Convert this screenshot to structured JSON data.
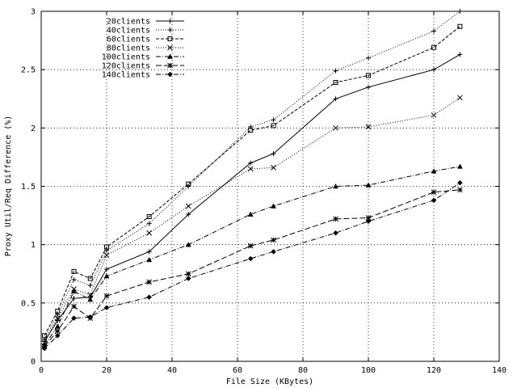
{
  "chart_data": {
    "type": "line",
    "title": "",
    "xlabel": "File Size (KBytes)",
    "ylabel": "Proxy Util/Req Difference (%)",
    "xlim": [
      0,
      140
    ],
    "ylim": [
      0,
      3
    ],
    "xticks": [
      0,
      20,
      40,
      60,
      80,
      100,
      120,
      140
    ],
    "yticks": [
      0,
      0.5,
      1,
      1.5,
      2,
      2.5,
      3
    ],
    "xtick_labels": [
      "0",
      "20",
      "40",
      "60",
      "80",
      "100",
      "120",
      "140"
    ],
    "ytick_labels": [
      "0",
      "0.5",
      "1",
      "1.5",
      "2",
      "2.5",
      "3"
    ],
    "grid": true,
    "legend_position": "top-left",
    "x": [
      1,
      5,
      10,
      15,
      20,
      33,
      45,
      64,
      71,
      90,
      100,
      120,
      128
    ],
    "series": [
      {
        "name": "20clients",
        "marker": "plus",
        "dash": "solid",
        "values": [
          0.17,
          0.35,
          0.54,
          0.55,
          0.79,
          0.94,
          1.26,
          1.7,
          1.78,
          2.25,
          2.35,
          2.5,
          2.63
        ]
      },
      {
        "name": "40clients",
        "marker": "plus",
        "dash": "dotted",
        "values": [
          0.19,
          0.4,
          0.7,
          0.65,
          0.95,
          1.18,
          1.5,
          2.01,
          2.07,
          2.49,
          2.6,
          2.83,
          3.0
        ]
      },
      {
        "name": "60clients",
        "marker": "square",
        "dash": "dashed",
        "values": [
          0.22,
          0.43,
          0.77,
          0.71,
          0.98,
          1.24,
          1.52,
          1.98,
          2.02,
          2.39,
          2.45,
          2.69,
          2.87
        ]
      },
      {
        "name": "80clients",
        "marker": "cross",
        "dash": "dotted",
        "values": [
          0.16,
          0.37,
          0.62,
          0.57,
          0.91,
          1.1,
          1.33,
          1.65,
          1.66,
          2.0,
          2.01,
          2.11,
          2.26
        ]
      },
      {
        "name": "100clients",
        "marker": "triangle",
        "dash": "dashdot",
        "values": [
          0.14,
          0.3,
          0.6,
          0.53,
          0.73,
          0.87,
          1.0,
          1.26,
          1.33,
          1.5,
          1.51,
          1.63,
          1.67
        ]
      },
      {
        "name": "120clients",
        "marker": "star",
        "dash": "longdash",
        "values": [
          0.13,
          0.26,
          0.47,
          0.37,
          0.56,
          0.68,
          0.75,
          0.99,
          1.04,
          1.22,
          1.23,
          1.45,
          1.47
        ]
      },
      {
        "name": "140clients",
        "marker": "diamond",
        "dash": "dashdot",
        "values": [
          0.11,
          0.22,
          0.37,
          0.38,
          0.46,
          0.55,
          0.71,
          0.88,
          0.94,
          1.1,
          1.2,
          1.38,
          1.53
        ]
      }
    ]
  }
}
